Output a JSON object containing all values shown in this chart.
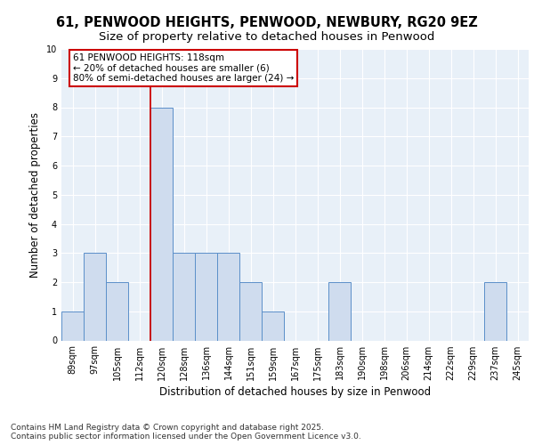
{
  "title1": "61, PENWOOD HEIGHTS, PENWOOD, NEWBURY, RG20 9EZ",
  "title2": "Size of property relative to detached houses in Penwood",
  "xlabel": "Distribution of detached houses by size in Penwood",
  "ylabel": "Number of detached properties",
  "categories": [
    "89sqm",
    "97sqm",
    "105sqm",
    "112sqm",
    "120sqm",
    "128sqm",
    "136sqm",
    "144sqm",
    "151sqm",
    "159sqm",
    "167sqm",
    "175sqm",
    "183sqm",
    "190sqm",
    "198sqm",
    "206sqm",
    "214sqm",
    "222sqm",
    "229sqm",
    "237sqm",
    "245sqm"
  ],
  "values": [
    1,
    3,
    2,
    0,
    8,
    3,
    3,
    3,
    2,
    1,
    0,
    0,
    2,
    0,
    0,
    0,
    0,
    0,
    0,
    2,
    0
  ],
  "bar_color": "#cfdcee",
  "bar_edge_color": "#5b8fc9",
  "red_line_index": 3.5,
  "annotation_line1": "61 PENWOOD HEIGHTS: 118sqm",
  "annotation_line2": "← 20% of detached houses are smaller (6)",
  "annotation_line3": "80% of semi-detached houses are larger (24) →",
  "annotation_box_color": "#ffffff",
  "annotation_box_edge": "#cc0000",
  "ylim": [
    0,
    10
  ],
  "yticks": [
    0,
    1,
    2,
    3,
    4,
    5,
    6,
    7,
    8,
    9,
    10
  ],
  "background_color": "#e8f0f8",
  "grid_color": "#ffffff",
  "footer_text": "Contains HM Land Registry data © Crown copyright and database right 2025.\nContains public sector information licensed under the Open Government Licence v3.0.",
  "title1_fontsize": 10.5,
  "title2_fontsize": 9.5,
  "ylabel_fontsize": 8.5,
  "xlabel_fontsize": 8.5,
  "tick_fontsize": 7,
  "annotation_fontsize": 7.5,
  "footer_fontsize": 6.5
}
